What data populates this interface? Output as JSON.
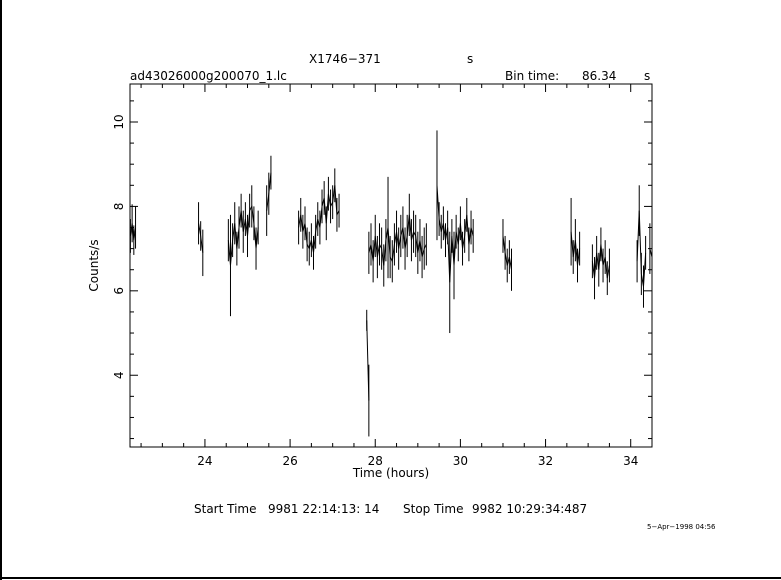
{
  "header": {
    "object": "X1746−371",
    "object_suffix": "s",
    "filename": "ad43026000g200070_1.lc",
    "bin_label": "Bin time:",
    "bin_value": "86.34",
    "bin_unit": "s"
  },
  "footer": {
    "start_label": "Start Time",
    "start_value": "9981 22:14:13: 14",
    "stop_label": "Stop Time",
    "stop_value": "9982 10:29:34:487",
    "date_stamp": "5−Apr−1998 04:56"
  },
  "chart_data": {
    "type": "line",
    "xlabel": "Time (hours)",
    "ylabel": "Counts/s",
    "xlim": [
      22.24,
      34.5
    ],
    "ylim": [
      2.3,
      10.9
    ],
    "xticks": [
      24,
      26,
      28,
      30,
      32,
      34
    ],
    "yticks": [
      4,
      6,
      8,
      10
    ],
    "grid": false,
    "segments": [
      {
        "x": [
          22.25,
          22.29,
          22.33,
          22.37
        ],
        "y": [
          7.3,
          7.6,
          7.2,
          7.5
        ],
        "err": [
          0.4,
          0.45,
          0.35,
          0.5
        ]
      },
      {
        "x": [
          23.85,
          23.9,
          23.95
        ],
        "y": [
          7.6,
          7.3,
          6.9
        ],
        "err": [
          0.5,
          0.35,
          0.55
        ]
      },
      {
        "x": [
          24.55,
          24.6,
          24.65,
          24.7,
          24.75,
          24.8,
          24.85,
          24.9,
          24.95,
          25.0,
          25.05,
          25.1,
          25.15,
          25.2,
          25.25
        ],
        "y": [
          7.2,
          6.6,
          7.2,
          7.6,
          7.0,
          7.5,
          7.9,
          7.4,
          7.7,
          7.3,
          7.9,
          8.0,
          7.6,
          7.0,
          7.5
        ],
        "err": [
          0.5,
          1.2,
          0.4,
          0.5,
          0.4,
          0.5,
          0.4,
          0.5,
          0.4,
          0.5,
          0.4,
          0.5,
          0.4,
          0.5,
          0.4
        ]
      },
      {
        "x": [
          25.45,
          25.5,
          25.55
        ],
        "y": [
          7.9,
          8.3,
          8.8
        ],
        "err": [
          0.6,
          0.5,
          0.4
        ]
      },
      {
        "x": [
          26.2,
          26.25,
          26.3,
          26.35,
          26.4,
          26.45,
          26.5,
          26.55,
          26.6,
          26.65,
          26.7,
          26.75,
          26.8,
          26.85,
          26.9,
          26.95,
          27.0,
          27.05,
          27.1,
          27.15
        ],
        "y": [
          7.5,
          7.8,
          7.4,
          7.6,
          7.1,
          7.0,
          7.2,
          6.9,
          7.4,
          7.7,
          7.5,
          8.0,
          8.2,
          7.6,
          8.3,
          8.0,
          8.1,
          8.5,
          7.8,
          7.9
        ],
        "err": [
          0.4,
          0.4,
          0.4,
          0.4,
          0.4,
          0.4,
          0.4,
          0.4,
          0.4,
          0.4,
          0.4,
          0.4,
          0.4,
          0.4,
          0.4,
          0.4,
          0.4,
          0.4,
          0.4,
          0.4
        ]
      },
      {
        "x": [
          27.8,
          27.85
        ],
        "y": [
          5.3,
          3.4
        ],
        "err": [
          0.25,
          0.85
        ]
      },
      {
        "x": [
          27.85,
          27.9,
          27.95,
          28.0,
          28.05,
          28.1,
          28.15,
          28.2,
          28.25,
          28.3,
          28.35,
          28.4,
          28.45,
          28.5,
          28.55,
          28.6,
          28.65,
          28.7,
          28.75,
          28.8,
          28.85,
          28.9,
          28.95,
          29.0,
          29.05,
          29.1,
          29.15,
          29.2
        ],
        "y": [
          6.9,
          7.1,
          6.7,
          7.3,
          6.8,
          7.1,
          7.0,
          6.6,
          7.2,
          7.5,
          6.8,
          6.7,
          7.1,
          7.4,
          7.0,
          7.3,
          7.5,
          7.0,
          7.3,
          7.8,
          7.2,
          7.4,
          7.3,
          6.9,
          7.2,
          6.8,
          7.0,
          7.1
        ],
        "err": [
          0.5,
          0.5,
          0.5,
          0.5,
          0.5,
          0.5,
          0.5,
          0.5,
          0.5,
          1.2,
          0.5,
          0.5,
          0.5,
          0.5,
          0.5,
          0.5,
          0.5,
          0.5,
          0.5,
          0.5,
          0.5,
          0.5,
          0.5,
          0.5,
          0.5,
          0.5,
          0.5,
          0.5
        ]
      },
      {
        "x": [
          29.45,
          29.5,
          29.55,
          29.6,
          29.65,
          29.7,
          29.75,
          29.8,
          29.85,
          29.9,
          29.95,
          30.0,
          30.05,
          30.1,
          30.15,
          30.2,
          30.25,
          30.3
        ],
        "y": [
          8.5,
          7.7,
          7.4,
          7.6,
          7.2,
          7.5,
          6.2,
          7.3,
          6.6,
          7.4,
          7.1,
          7.6,
          7.0,
          7.3,
          7.8,
          7.1,
          7.5,
          7.3
        ],
        "err": [
          1.3,
          0.4,
          0.4,
          0.4,
          0.4,
          0.4,
          1.2,
          0.4,
          0.8,
          0.4,
          0.4,
          0.4,
          0.4,
          0.4,
          0.4,
          0.4,
          0.4,
          0.4
        ]
      },
      {
        "x": [
          31.0,
          31.05,
          31.1,
          31.15,
          31.2
        ],
        "y": [
          7.3,
          6.9,
          6.6,
          6.8,
          6.5
        ],
        "err": [
          0.4,
          0.4,
          0.4,
          0.4,
          0.5
        ]
      },
      {
        "x": [
          32.6,
          32.65,
          32.7,
          32.75,
          32.8
        ],
        "y": [
          7.4,
          6.8,
          7.2,
          6.6,
          7.0
        ],
        "err": [
          0.8,
          0.4,
          0.5,
          0.4,
          0.4
        ]
      },
      {
        "x": [
          33.1,
          33.15,
          33.2,
          33.25,
          33.3,
          33.35,
          33.4,
          33.45,
          33.5
        ],
        "y": [
          6.7,
          6.3,
          6.9,
          6.5,
          7.1,
          6.6,
          6.8,
          6.3,
          6.6
        ],
        "err": [
          0.4,
          0.5,
          0.4,
          0.4,
          0.4,
          0.4,
          0.4,
          0.4,
          0.4
        ]
      },
      {
        "x": [
          34.15,
          34.2,
          34.25,
          34.3,
          34.35
        ],
        "y": [
          6.7,
          7.9,
          6.4,
          6.1,
          6.9
        ],
        "err": [
          0.5,
          0.6,
          0.5,
          0.5,
          0.4
        ]
      },
      {
        "x": [
          34.45,
          34.5
        ],
        "y": [
          7.0,
          6.8
        ],
        "err": [
          0.6,
          0.5
        ]
      }
    ]
  }
}
